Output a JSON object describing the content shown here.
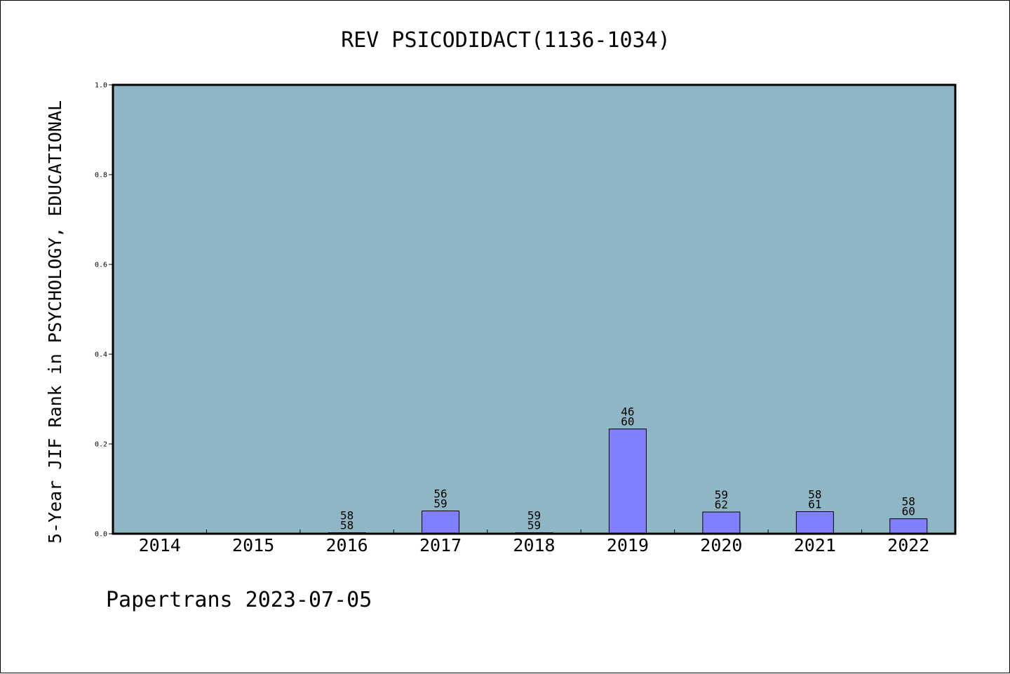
{
  "colors": {
    "plot_background": "#8fb6c4",
    "bar_fill": "#8080ff",
    "bar_stroke": "#000000",
    "axis": "#000000"
  },
  "footer": {
    "text": "Papertrans 2023-07-05"
  },
  "chart_data": {
    "type": "bar",
    "title": "REV PSICODIDACT(1136-1034)",
    "xlabel": "",
    "ylabel": "5-Year JIF Rank in PSYCHOLOGY, EDUCATIONAL",
    "ylim": [
      0,
      1.0
    ],
    "yticks": [
      "0.0",
      "0.2",
      "0.4",
      "0.6",
      "0.8",
      "1.0"
    ],
    "grid": false,
    "categories": [
      "2014",
      "2015",
      "2016",
      "2017",
      "2018",
      "2019",
      "2020",
      "2021",
      "2022"
    ],
    "values": [
      null,
      null,
      0.0,
      0.0508,
      0.0,
      0.2333,
      0.0484,
      0.0492,
      0.0333
    ],
    "labels_top": [
      null,
      null,
      "58",
      "56",
      "59",
      "46",
      "59",
      "58",
      "58"
    ],
    "labels_bottom": [
      null,
      null,
      "58",
      "59",
      "59",
      "60",
      "62",
      "61",
      "60"
    ]
  }
}
